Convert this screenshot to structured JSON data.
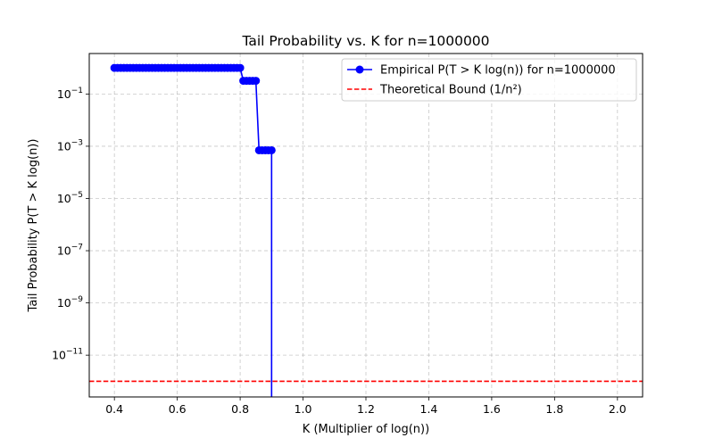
{
  "chart_data": {
    "type": "line",
    "title": "Tail Probability vs. K for n=1000000",
    "xlabel": "K (Multiplier of log(n))",
    "ylabel": "Tail Probability P(T > K log(n))",
    "xlim": [
      0.32,
      2.08
    ],
    "ylim_exponent": [
      -12.6,
      0.55
    ],
    "yscale": "log",
    "grid": true,
    "legend_position": "top-right",
    "x_ticks": [
      0.4,
      0.6,
      0.8,
      1.0,
      1.2,
      1.4,
      1.6,
      1.8,
      2.0
    ],
    "x_tick_labels": [
      "0.4",
      "0.6",
      "0.8",
      "1.0",
      "1.2",
      "1.4",
      "1.6",
      "1.8",
      "2.0"
    ],
    "y_tick_exponents": [
      -1,
      -3,
      -5,
      -7,
      -9,
      -11
    ],
    "y_tick_labels": [
      "10",
      "10",
      "10",
      "10",
      "10",
      "10"
    ],
    "y_tick_sup_labels": [
      "−1",
      "−3",
      "−5",
      "−7",
      "−9",
      "−11"
    ],
    "series": [
      {
        "name": "Empirical P(T > K log(n)) for n=1000000",
        "color": "#0000ff",
        "marker": "circle",
        "line_style": "solid",
        "x": [
          0.4,
          0.41,
          0.42,
          0.43,
          0.44,
          0.45,
          0.46,
          0.47,
          0.48,
          0.49,
          0.5,
          0.51,
          0.52,
          0.53,
          0.54,
          0.55,
          0.56,
          0.57,
          0.58,
          0.59,
          0.6,
          0.61,
          0.62,
          0.63,
          0.64,
          0.65,
          0.66,
          0.67,
          0.68,
          0.69,
          0.7,
          0.71,
          0.72,
          0.73,
          0.74,
          0.75,
          0.76,
          0.77,
          0.78,
          0.79,
          0.8,
          0.81,
          0.82,
          0.83,
          0.84,
          0.85,
          0.86,
          0.87,
          0.88,
          0.89,
          0.9
        ],
        "y": [
          1,
          1,
          1,
          1,
          1,
          1,
          1,
          1,
          1,
          1,
          1,
          1,
          1,
          1,
          1,
          1,
          1,
          1,
          1,
          1,
          1,
          1,
          1,
          1,
          1,
          1,
          1,
          1,
          1,
          1,
          1,
          1,
          1,
          1,
          1,
          1,
          1,
          1,
          1,
          1,
          1,
          0.32,
          0.32,
          0.32,
          0.32,
          0.32,
          0.0007,
          0.0007,
          0.0007,
          0.0007,
          0.0007
        ],
        "drop_to_zero_after_x": 0.9
      },
      {
        "name": "Theoretical Bound (1/n²)",
        "color": "#ff0000",
        "line_style": "dashed",
        "y_constant": 1e-12
      }
    ]
  }
}
